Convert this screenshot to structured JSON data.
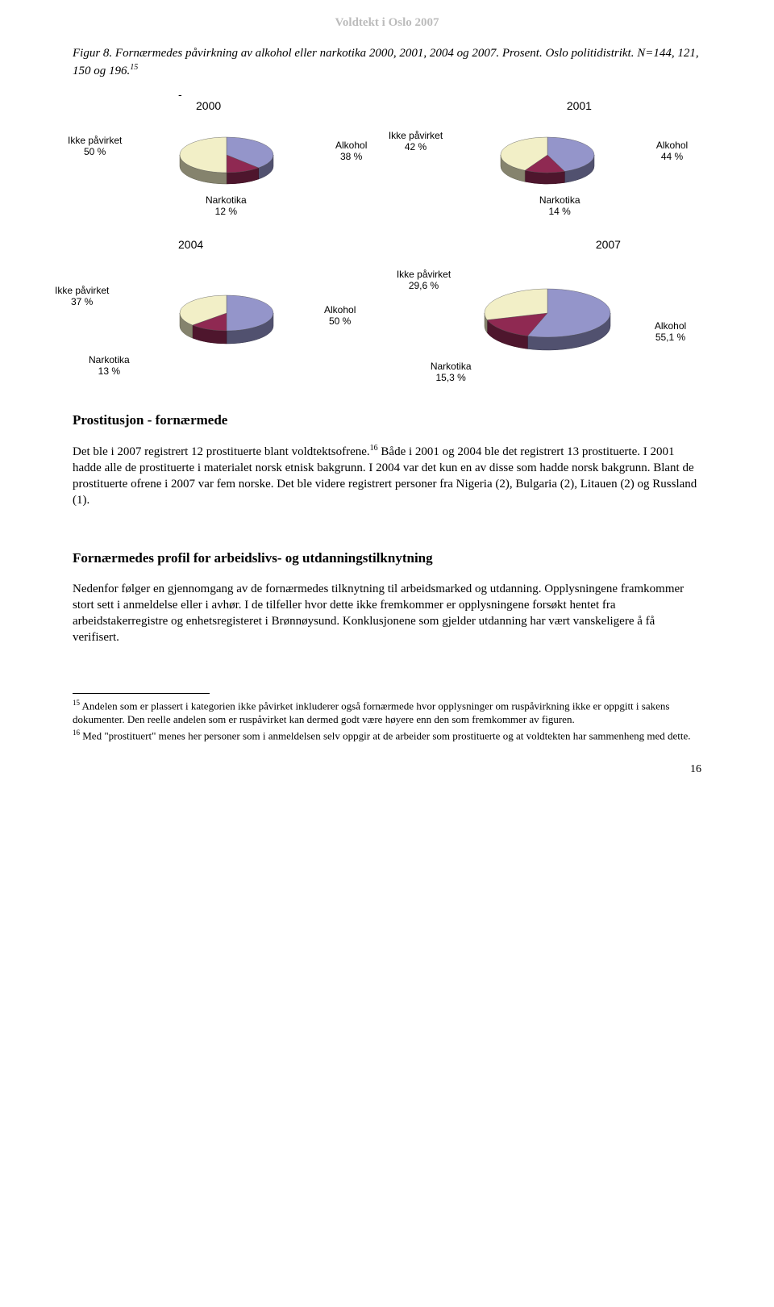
{
  "header_title": "Voldtekt i Oslo 2007",
  "figure_caption": "Figur 8. Fornærmedes påvirkning av alkohol eller narkotika 2000, 2001, 2004 og 2007. Prosent. Oslo politidistrikt. N=144, 121, 150 og 196.",
  "figure_footnote_ref": "15",
  "colors": {
    "ikke": "#f2efc7",
    "narkotika": "#8f2952",
    "alkohol": "#9495ca",
    "edge_top": "#7b7c60",
    "edge_bottom": "#555555"
  },
  "charts": [
    {
      "year": "2000",
      "dash": "-",
      "slices": [
        {
          "label_key": "ikke",
          "label": "Ikke påvirket",
          "value": 50,
          "display": "50 %"
        },
        {
          "label_key": "narkotika",
          "label": "Narkotika",
          "value": 12,
          "display": "12 %"
        },
        {
          "label_key": "alkohol",
          "label": "Alkohol",
          "value": 38,
          "display": "38 %"
        }
      ]
    },
    {
      "year": "2001",
      "slices": [
        {
          "label_key": "ikke",
          "label": "Ikke påvirket",
          "value": 42,
          "display": "42 %"
        },
        {
          "label_key": "narkotika",
          "label": "Narkotika",
          "value": 14,
          "display": "14 %"
        },
        {
          "label_key": "alkohol",
          "label": "Alkohol",
          "value": 44,
          "display": "44 %"
        }
      ]
    },
    {
      "year": "2004",
      "slices": [
        {
          "label_key": "ikke",
          "label": "Ikke påvirket",
          "value": 37,
          "display": "37 %"
        },
        {
          "label_key": "narkotika",
          "label": "Narkotika",
          "value": 13,
          "display": "13 %"
        },
        {
          "label_key": "alkohol",
          "label": "Alkohol",
          "value": 50,
          "display": "50 %"
        }
      ]
    },
    {
      "year": "2007",
      "slices": [
        {
          "label_key": "ikke",
          "label": "Ikke påvirket",
          "value": 29.6,
          "display": "29,6 %"
        },
        {
          "label_key": "narkotika",
          "label": "Narkotika",
          "value": 15.3,
          "display": "15,3 %"
        },
        {
          "label_key": "alkohol",
          "label": "Alkohol",
          "value": 55.1,
          "display": "55,1 %"
        }
      ]
    }
  ],
  "section1_heading": "Prostitusjon - fornærmede",
  "paragraph1_a": "Det ble i 2007 registrert 12 prostituerte blant voldtektsofrene.",
  "paragraph1_ref": "16",
  "paragraph1_b": " Både i 2001 og 2004 ble det registrert 13 prostituerte. I 2001 hadde alle de prostituerte i materialet norsk etnisk bakgrunn. I 2004 var det kun en av disse som hadde norsk bakgrunn. Blant de prostituerte ofrene i 2007 var fem norske. Det ble videre registrert personer fra Nigeria (2), Bulgaria (2), Litauen (2) og Russland (1).",
  "section2_heading": "Fornærmedes profil for arbeidslivs- og utdanningstilknytning",
  "paragraph2": "Nedenfor følger en gjennomgang av de fornærmedes tilknytning til arbeidsmarked og utdanning. Opplysningene framkommer stort sett i anmeldelse eller i avhør. I de tilfeller hvor dette ikke fremkommer er opplysningene forsøkt hentet fra arbeidstakerregistre og enhetsregisteret i Brønnøysund. Konklusjonene som gjelder utdanning har vært vanskeligere å få verifisert.",
  "footnote15_num": "15",
  "footnote15": " Andelen som er plassert i kategorien ikke påvirket inkluderer også fornærmede hvor opplysninger om ruspåvirkning ikke er oppgitt i sakens dokumenter. Den reelle andelen som er ruspåvirket kan dermed godt være høyere enn den som fremkommer av figuren.",
  "footnote16_num": "16",
  "footnote16": " Med \"prostituert\" menes her personer som i anmeldelsen selv oppgir at de arbeider som prostituerte og at voldtekten har sammenheng med dette.",
  "page_number": "16"
}
